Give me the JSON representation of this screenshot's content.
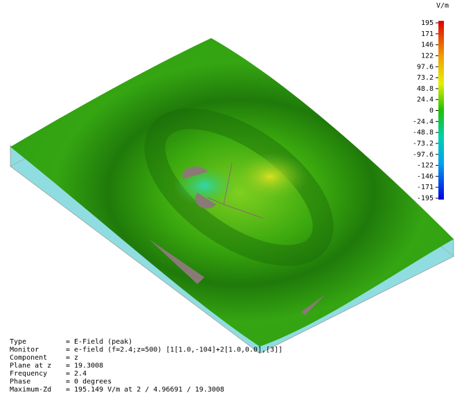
{
  "colorbar": {
    "unit": "V/m",
    "labels": [
      "195",
      "171",
      "146",
      "122",
      "97.6",
      "73.2",
      "48.8",
      "24.4",
      "0",
      "-24.4",
      "-48.8",
      "-73.2",
      "-97.6",
      "-122",
      "-146",
      "-171",
      "-195"
    ]
  },
  "info": [
    {
      "label": "Type",
      "value": "= E-Field (peak)"
    },
    {
      "label": "Monitor",
      "value": "= e-field (f=2.4;z=500) [1[1.0,-104]+2[1.0,0.0],[3]]"
    },
    {
      "label": "Component",
      "value": "= z"
    },
    {
      "label": "Plane at z",
      "value": "= 19.3008"
    },
    {
      "label": "Frequency",
      "value": "= 2.4"
    },
    {
      "label": "Phase",
      "value": "= 0 degrees"
    },
    {
      "label": "Maximum-Zd",
      "value": "= 195.149 V/m at 2 / 4.96691 / 19.3008"
    }
  ]
}
